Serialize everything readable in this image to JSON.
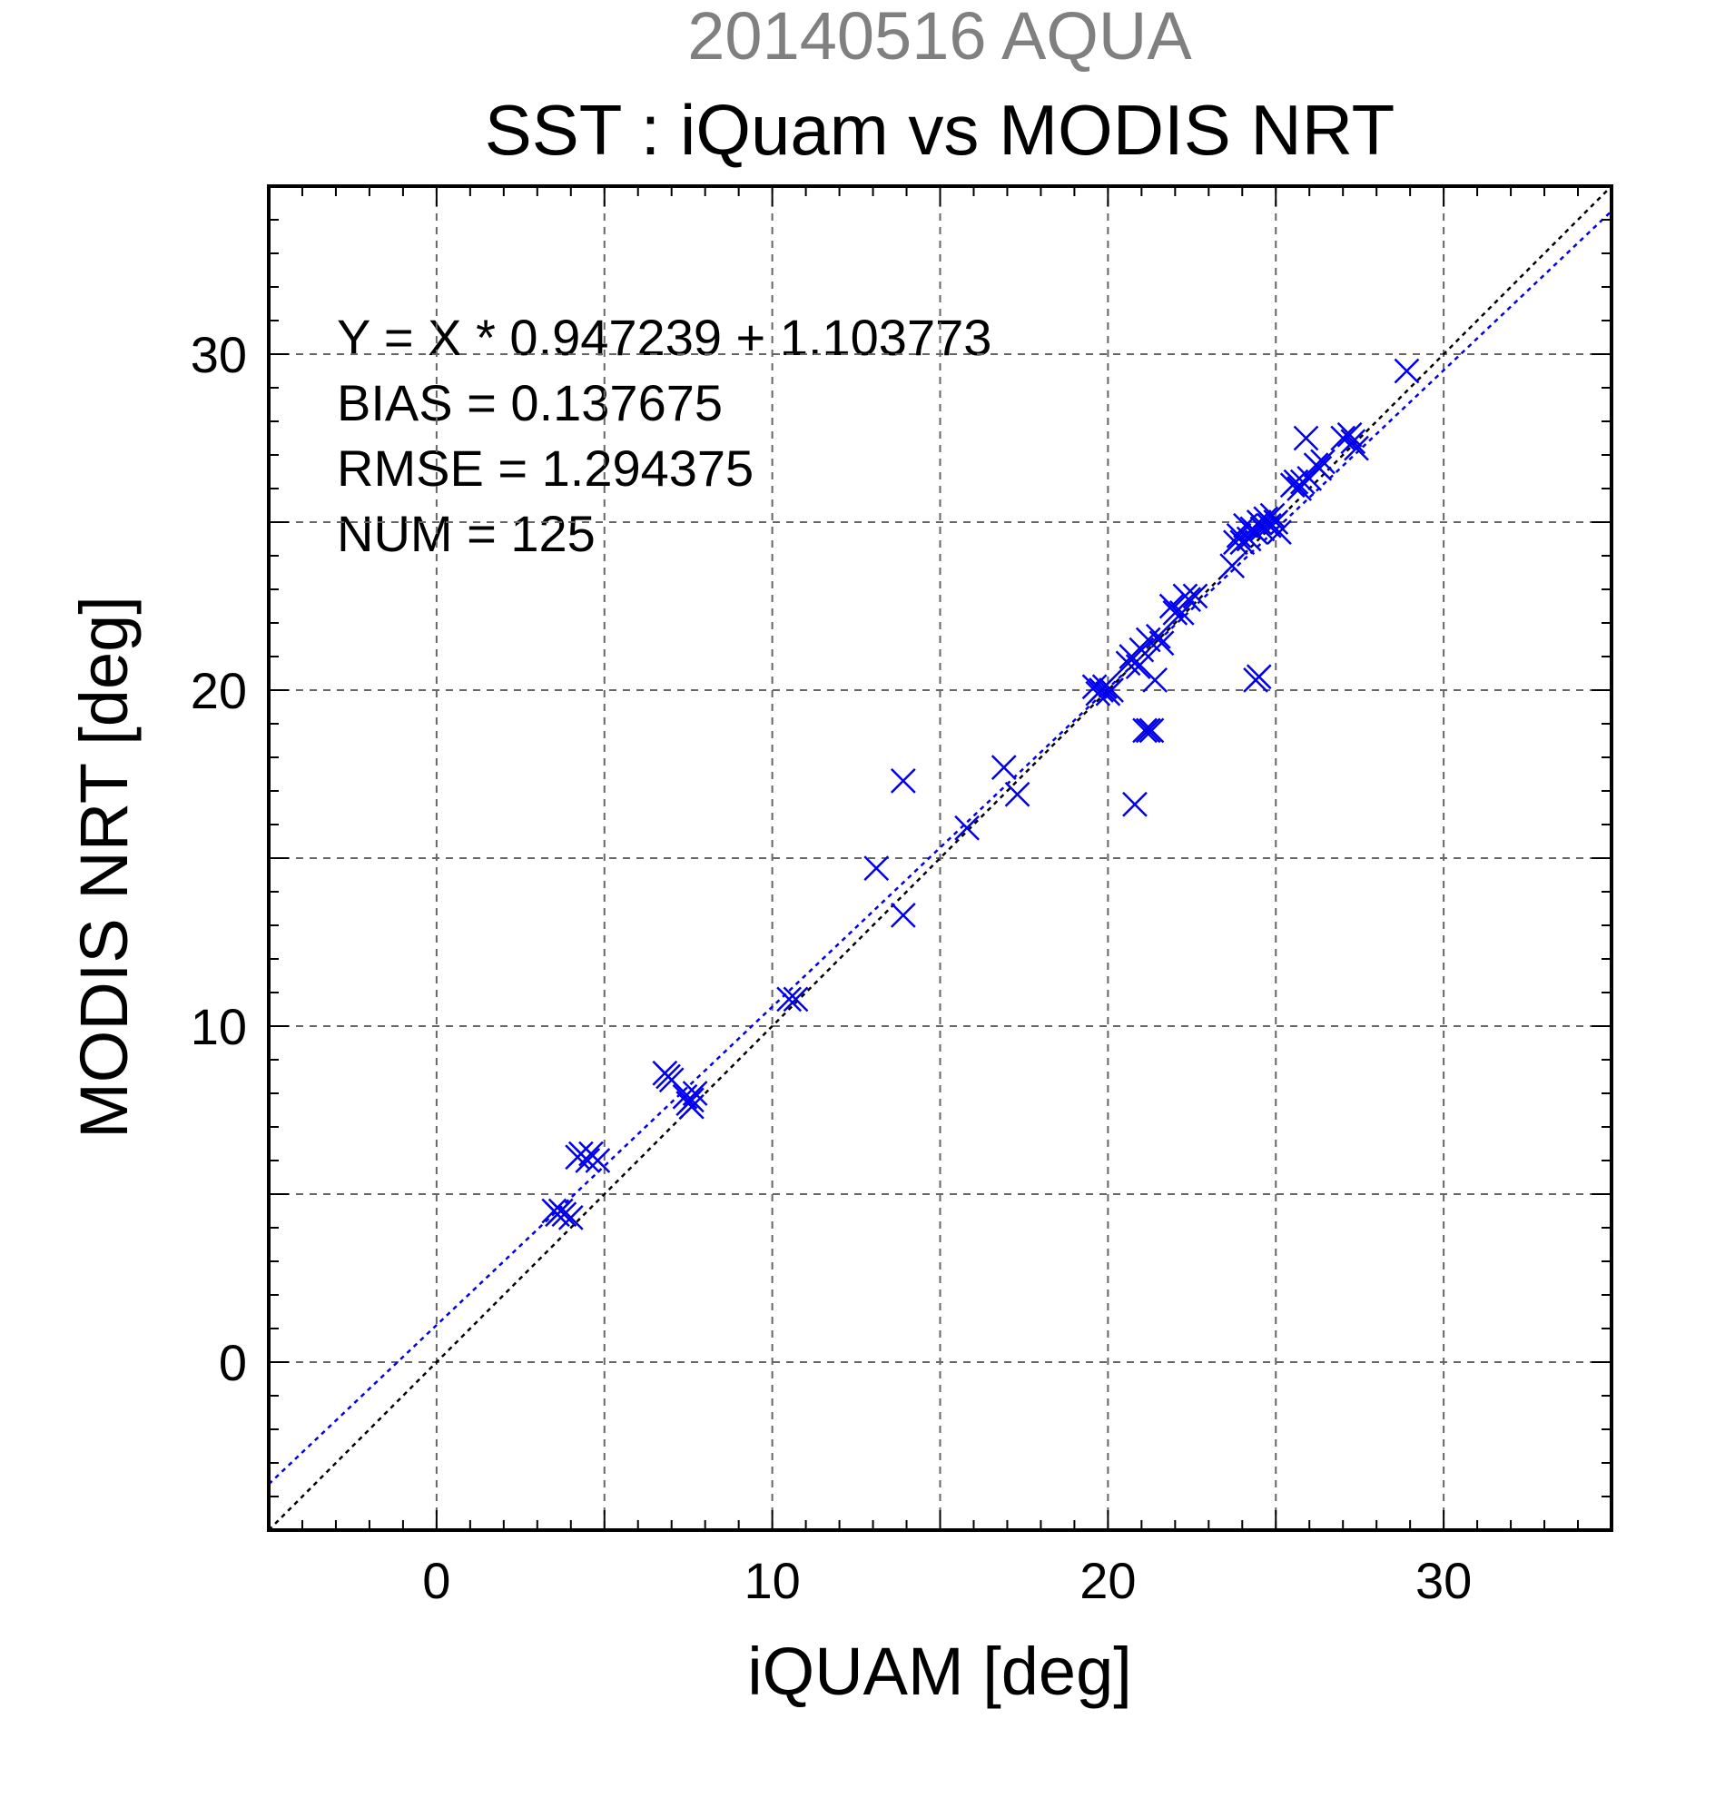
{
  "figure": {
    "top_title": "20140516 AQUA",
    "title_color": "#808080"
  },
  "chart_data": {
    "type": "scatter",
    "title": "SST : iQuam vs MODIS NRT",
    "xlabel": "iQUAM [deg]",
    "ylabel": "MODIS NRT [deg]",
    "xlim": [
      -5,
      35
    ],
    "ylim": [
      -5,
      35
    ],
    "x_ticks": [
      0,
      10,
      20,
      30
    ],
    "y_ticks": [
      0,
      10,
      20,
      30
    ],
    "grid": true,
    "marker": "x",
    "colors": {
      "points": "#0000ee",
      "fit_line": "#0000ee",
      "identity_line": "#000000",
      "grid": "#666666"
    },
    "annotations": [
      "Y = X * 0.947239 + 1.103773",
      "BIAS = 0.137675",
      "RMSE = 1.294375",
      "NUM = 125"
    ],
    "fit": {
      "slope": 0.947239,
      "intercept": 1.103773
    },
    "points": [
      [
        3.5,
        4.5
      ],
      [
        3.6,
        4.4
      ],
      [
        3.7,
        4.5
      ],
      [
        3.8,
        4.4
      ],
      [
        4.0,
        4.3
      ],
      [
        4.2,
        6.1
      ],
      [
        4.3,
        6.2
      ],
      [
        4.5,
        6.0
      ],
      [
        4.6,
        6.2
      ],
      [
        4.8,
        6.0
      ],
      [
        6.8,
        8.6
      ],
      [
        6.9,
        8.5
      ],
      [
        7.0,
        8.4
      ],
      [
        7.4,
        7.9
      ],
      [
        7.5,
        7.7
      ],
      [
        7.6,
        7.8
      ],
      [
        7.6,
        7.6
      ],
      [
        7.7,
        8.0
      ],
      [
        10.5,
        10.8
      ],
      [
        10.7,
        10.8
      ],
      [
        13.1,
        14.7
      ],
      [
        13.9,
        17.3
      ],
      [
        13.9,
        13.3
      ],
      [
        15.8,
        15.9
      ],
      [
        16.9,
        17.7
      ],
      [
        17.3,
        16.9
      ],
      [
        19.6,
        20.1
      ],
      [
        19.7,
        19.9
      ],
      [
        19.8,
        20.0
      ],
      [
        19.9,
        20.1
      ],
      [
        20.0,
        19.9
      ],
      [
        20.1,
        20.0
      ],
      [
        20.6,
        20.8
      ],
      [
        20.7,
        21.0
      ],
      [
        20.9,
        20.7
      ],
      [
        21.0,
        21.2
      ],
      [
        20.8,
        16.6
      ],
      [
        21.1,
        18.8
      ],
      [
        21.2,
        18.8
      ],
      [
        21.3,
        18.8
      ],
      [
        21.4,
        20.3
      ],
      [
        21.2,
        21.5
      ],
      [
        21.5,
        21.6
      ],
      [
        21.6,
        21.4
      ],
      [
        21.9,
        22.5
      ],
      [
        22.0,
        22.3
      ],
      [
        22.2,
        22.3
      ],
      [
        22.3,
        22.8
      ],
      [
        22.4,
        22.7
      ],
      [
        22.6,
        22.8
      ],
      [
        23.7,
        23.7
      ],
      [
        23.8,
        24.4
      ],
      [
        23.9,
        24.6
      ],
      [
        24.0,
        24.4
      ],
      [
        24.1,
        24.9
      ],
      [
        24.2,
        24.5
      ],
      [
        24.3,
        24.8
      ],
      [
        24.4,
        24.7
      ],
      [
        24.5,
        25.0
      ],
      [
        24.6,
        24.8
      ],
      [
        24.7,
        25.1
      ],
      [
        24.8,
        24.9
      ],
      [
        24.9,
        25.2
      ],
      [
        25.0,
        25.0
      ],
      [
        25.1,
        24.7
      ],
      [
        24.4,
        20.3
      ],
      [
        24.5,
        20.4
      ],
      [
        25.5,
        26.1
      ],
      [
        25.6,
        26.2
      ],
      [
        25.7,
        26.0
      ],
      [
        25.8,
        26.2
      ],
      [
        25.9,
        27.5
      ],
      [
        26.0,
        26.3
      ],
      [
        26.2,
        26.7
      ],
      [
        26.3,
        26.6
      ],
      [
        26.4,
        26.8
      ],
      [
        27.0,
        27.5
      ],
      [
        27.2,
        27.6
      ],
      [
        27.3,
        27.4
      ],
      [
        27.4,
        27.2
      ],
      [
        28.9,
        29.5
      ]
    ]
  }
}
